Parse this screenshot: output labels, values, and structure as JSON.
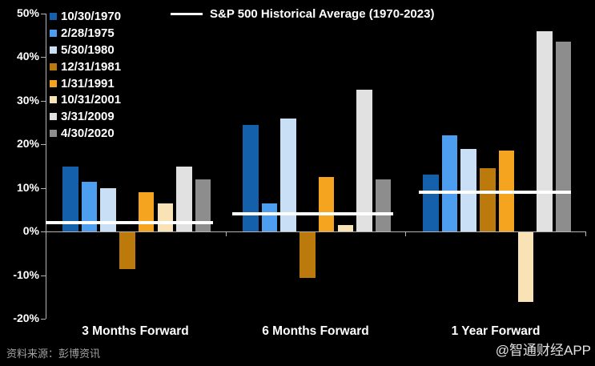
{
  "footer": {
    "source_note": "资料来源：彭博资讯",
    "watermark": "@智通财经APP"
  },
  "chart_data": {
    "type": "bar",
    "title": "",
    "legend_position": "top-left",
    "grid": false,
    "background": "#000000",
    "axis_color": "#B5B5B5",
    "text_color": "#FFFFFF",
    "ylim": [
      -20,
      50
    ],
    "ytick_values": [
      50,
      40,
      30,
      20,
      10,
      0,
      -10,
      -20
    ],
    "ytick_labels": [
      "50%",
      "40%",
      "30%",
      "20%",
      "10%",
      "0%",
      "-10%",
      "-20%"
    ],
    "categories": [
      "3 Months Forward",
      "6 Months Forward",
      "1 Year Forward"
    ],
    "series": [
      {
        "name": "10/30/1970",
        "color": "#1560AB",
        "values": [
          15,
          24.5,
          13
        ]
      },
      {
        "name": "2/28/1975",
        "color": "#4D9EEE",
        "values": [
          11.5,
          6.5,
          22
        ]
      },
      {
        "name": "5/30/1980",
        "color": "#C9DFF6",
        "values": [
          10,
          26,
          19
        ]
      },
      {
        "name": "12/31/1981",
        "color": "#BC7A0D",
        "values": [
          -8.5,
          -10.5,
          14.5
        ]
      },
      {
        "name": "1/31/1991",
        "color": "#F5A41F",
        "values": [
          9,
          12.5,
          18.5
        ]
      },
      {
        "name": "10/31/2001",
        "color": "#F9E2B6",
        "values": [
          6.5,
          1.5,
          -16
        ]
      },
      {
        "name": "3/31/2009",
        "color": "#E1E1E1",
        "values": [
          15,
          32.5,
          46
        ]
      },
      {
        "name": "4/30/2020",
        "color": "#8D8D8D",
        "values": [
          12,
          12,
          43.5
        ]
      }
    ],
    "average_line": {
      "label": "S&P 500 Historical Average (1970-2023)",
      "color": "#FFFFFF",
      "values": [
        2,
        4,
        9
      ]
    }
  }
}
